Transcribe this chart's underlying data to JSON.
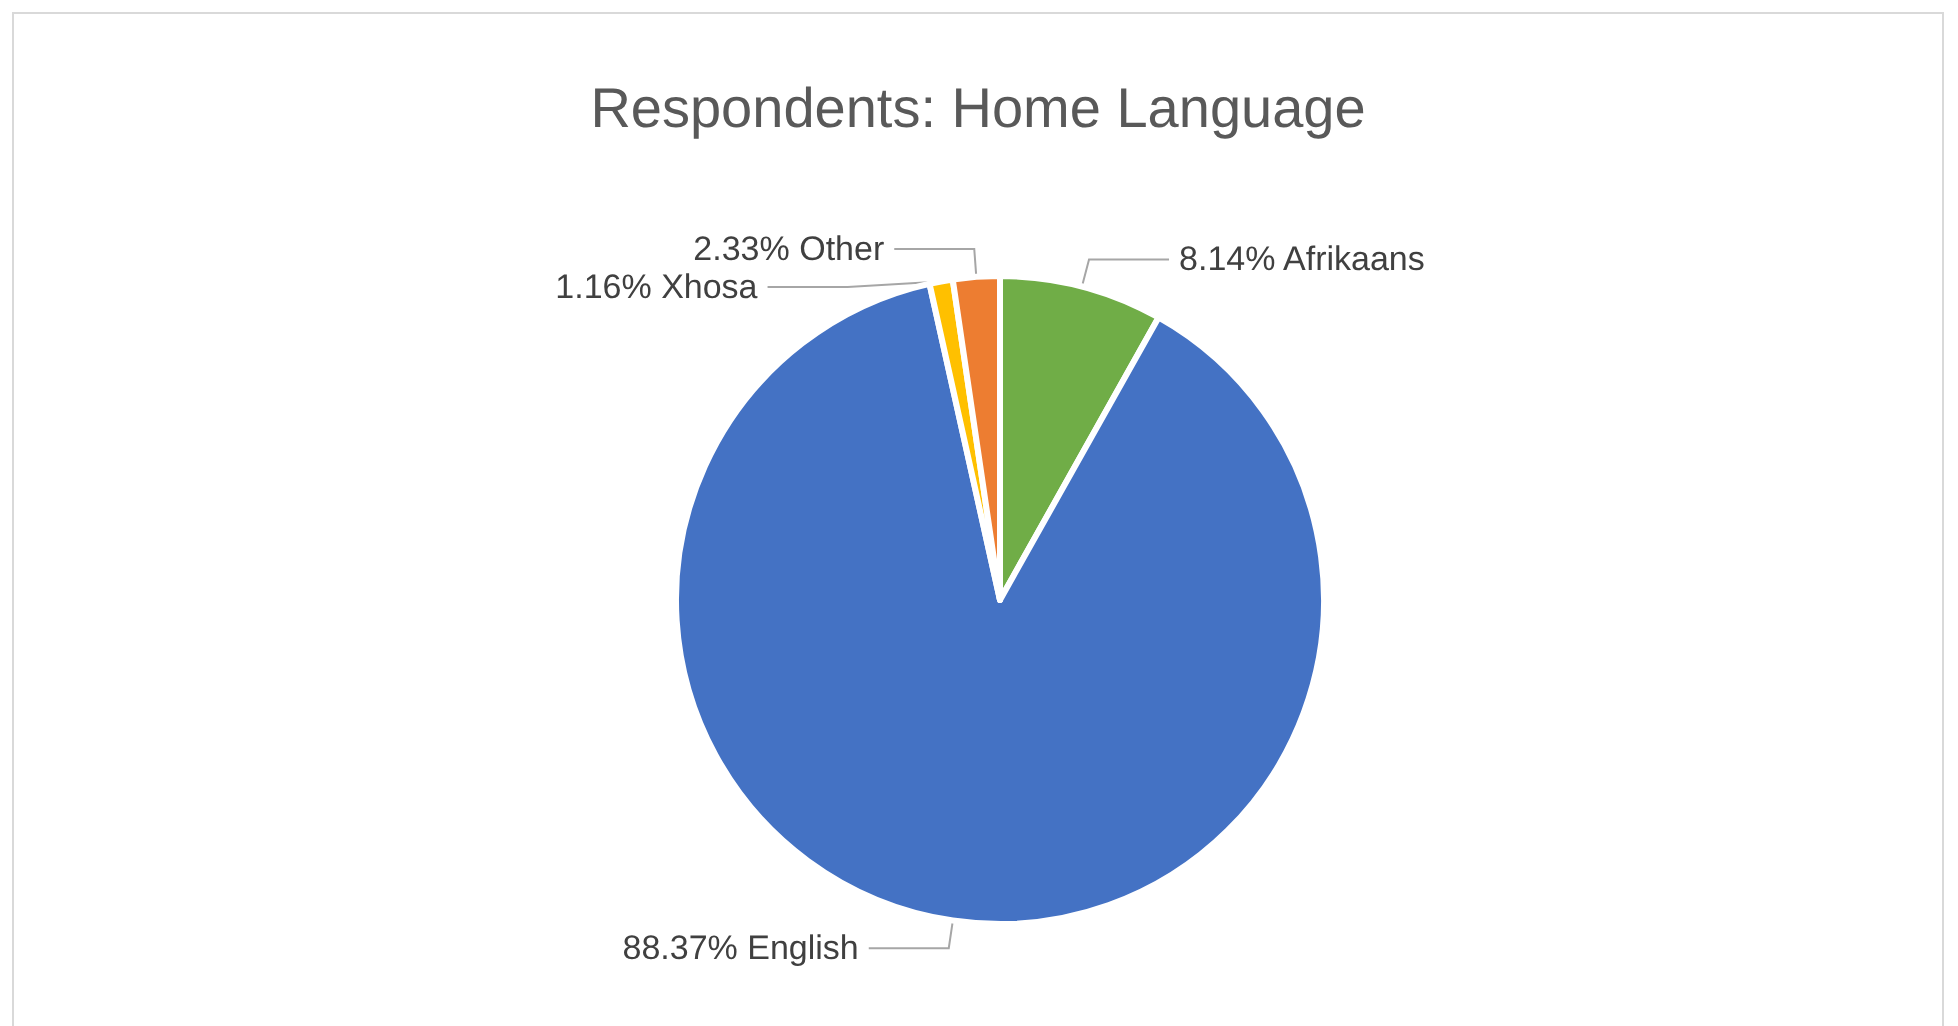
{
  "chart_data": {
    "type": "pie",
    "title": "Respondents: Home Language",
    "categories": [
      "Afrikaans",
      "English",
      "Xhosa",
      "Other"
    ],
    "values": [
      8.14,
      88.37,
      1.16,
      2.33
    ],
    "colors": [
      "#70ad47",
      "#4472c4",
      "#ffc000",
      "#ed7d31"
    ],
    "value_labels": [
      "8.14%",
      "88.37%",
      "1.16%",
      "2.33%"
    ],
    "legend": false
  }
}
